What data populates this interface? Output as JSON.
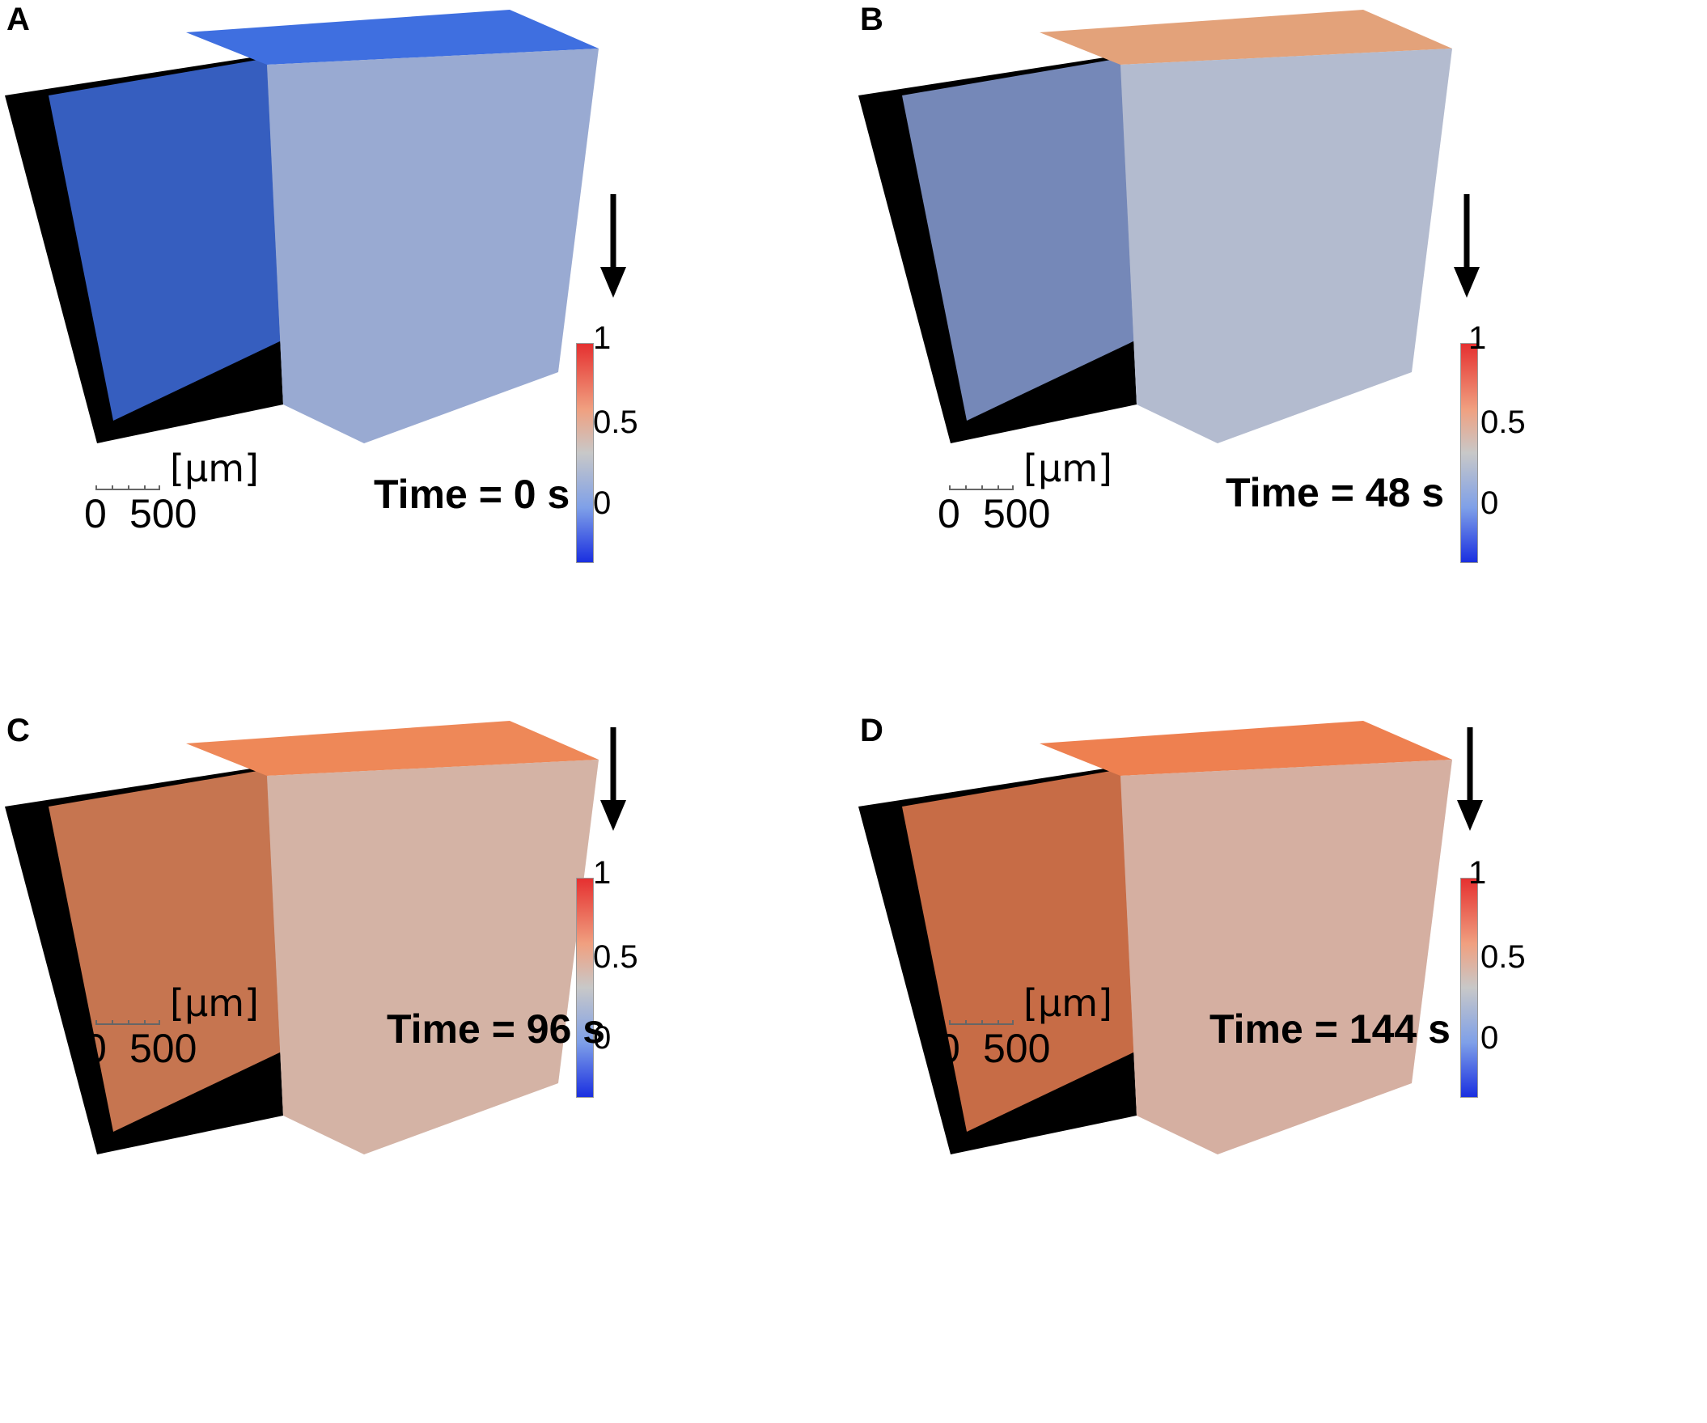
{
  "panels": [
    {
      "letter": "A",
      "time": "Time = 0 s",
      "unit": "[μm]",
      "scale_start": "0",
      "scale_end": "500",
      "cbar_top": "1",
      "cbar_mid": "0.5",
      "cbar_bottom": "0",
      "fluid_color": "#3f6fe0",
      "top_color": "#3f6fe0"
    },
    {
      "letter": "B",
      "time": "Time = 48 s",
      "unit": "[μm]",
      "scale_start": "0",
      "scale_end": "500",
      "cbar_top": "1",
      "cbar_mid": "0.5",
      "cbar_bottom": "0",
      "fluid_color": "#8aa0d8",
      "top_color": "#e3a27a"
    },
    {
      "letter": "C",
      "time": "Time = 96 s",
      "unit": "[μm]",
      "scale_start": "0",
      "scale_end": "500",
      "cbar_top": "1",
      "cbar_mid": "0.5",
      "cbar_bottom": "0",
      "fluid_color": "#e98a5e",
      "top_color": "#ee8858"
    },
    {
      "letter": "D",
      "time": "Time = 144 s",
      "unit": "[μm]",
      "scale_start": "0",
      "scale_end": "500",
      "cbar_top": "1",
      "cbar_mid": "0.5",
      "cbar_bottom": "0",
      "fluid_color": "#ea7f52",
      "top_color": "#ee8050"
    }
  ]
}
